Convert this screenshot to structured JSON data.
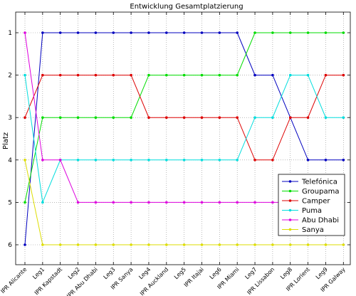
{
  "chart_data": {
    "type": "line",
    "title": "Entwicklung Gesamtplatzierung",
    "xlabel": "",
    "ylabel": "Platz",
    "ylim": [
      1,
      6
    ],
    "y_reversed": true,
    "yticks": [
      "1",
      "2",
      "3",
      "4",
      "5",
      "6"
    ],
    "grid": "dotted",
    "legend_position": "lower-right",
    "categories": [
      "IPR Alicante",
      "Leg1",
      "IPR Kapstadt",
      "Leg2",
      "IPR Abu Dhabi",
      "Leg3",
      "IPR Sanya",
      "Leg4",
      "IPR Auckland",
      "Leg5",
      "IPR Itajai",
      "Leg6",
      "IPR Miami",
      "Leg7",
      "IPR Lissabon",
      "Leg8",
      "IPR Lorient",
      "Leg9",
      "IPR Galway"
    ],
    "series": [
      {
        "name": "Telefónica",
        "color": "#0000bf",
        "values": [
          6,
          1,
          1,
          1,
          1,
          1,
          1,
          1,
          1,
          1,
          1,
          1,
          1,
          2,
          2,
          3,
          4,
          4,
          4
        ]
      },
      {
        "name": "Groupama",
        "color": "#00dd00",
        "values": [
          5,
          3,
          3,
          3,
          3,
          3,
          3,
          2,
          2,
          2,
          2,
          2,
          2,
          1,
          1,
          1,
          1,
          1,
          1
        ]
      },
      {
        "name": "Camper",
        "color": "#dd0000",
        "values": [
          3,
          2,
          2,
          2,
          2,
          2,
          2,
          3,
          3,
          3,
          3,
          3,
          3,
          4,
          4,
          3,
          3,
          2,
          2
        ]
      },
      {
        "name": "Puma",
        "color": "#00dddd",
        "values": [
          2,
          5,
          4,
          4,
          4,
          4,
          4,
          4,
          4,
          4,
          4,
          4,
          4,
          3,
          3,
          2,
          2,
          3,
          3
        ]
      },
      {
        "name": "Abu Dhabi",
        "color": "#dd00dd",
        "values": [
          1,
          4,
          4,
          5,
          5,
          5,
          5,
          5,
          5,
          5,
          5,
          5,
          5,
          5,
          5,
          5,
          5,
          5,
          5
        ]
      },
      {
        "name": "Sanya",
        "color": "#dddd00",
        "values": [
          4,
          6,
          6,
          6,
          6,
          6,
          6,
          6,
          6,
          6,
          6,
          6,
          6,
          6,
          6,
          6,
          6,
          6,
          6
        ]
      }
    ]
  }
}
